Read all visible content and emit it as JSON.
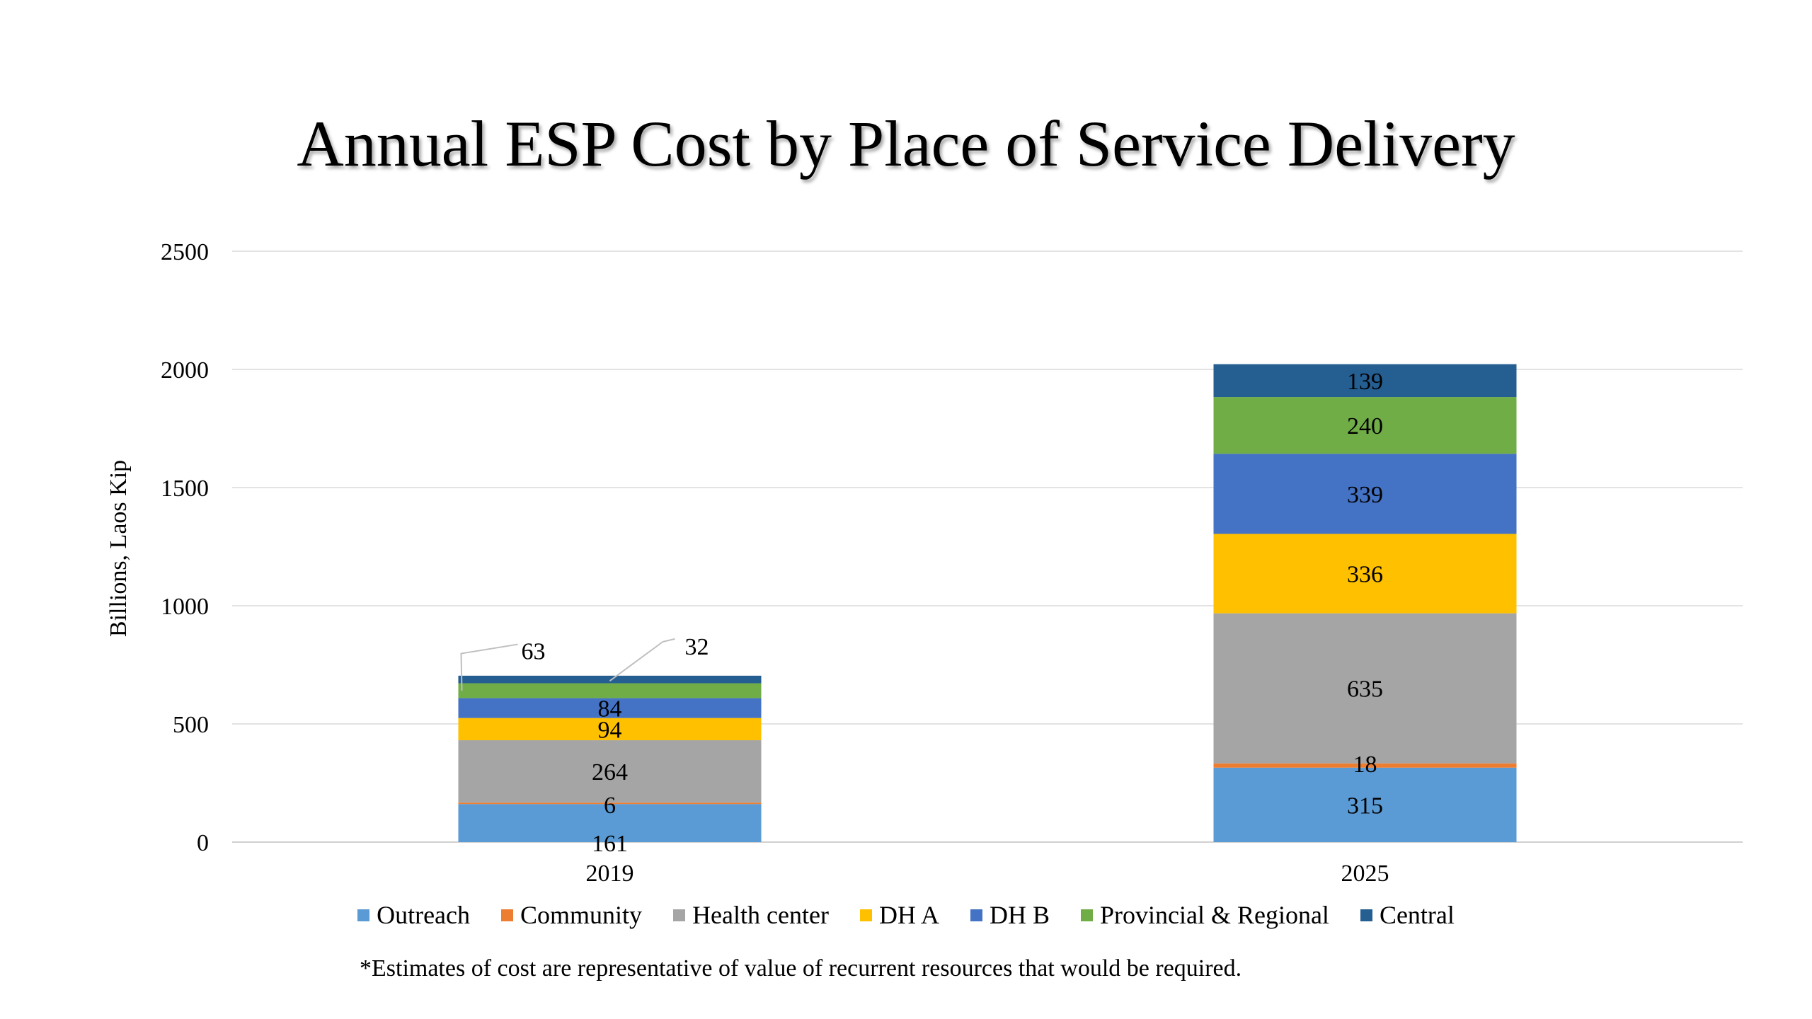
{
  "chart_data": {
    "type": "bar",
    "stacked": true,
    "title": "Annual ESP Cost by Place of Service Delivery",
    "xlabel": "",
    "ylabel": "Billions, Laos Kip",
    "ylim": [
      0,
      2500
    ],
    "yticks": [
      0,
      500,
      1000,
      1500,
      2000,
      2500
    ],
    "categories": [
      "2019",
      "2025"
    ],
    "grid": true,
    "legend_position": "bottom",
    "series": [
      {
        "name": "Outreach",
        "color": "#5b9bd5",
        "values": [
          161,
          315
        ]
      },
      {
        "name": "Community",
        "color": "#ed7d31",
        "values": [
          6,
          18
        ]
      },
      {
        "name": "Health center",
        "color": "#a5a5a5",
        "values": [
          264,
          635
        ]
      },
      {
        "name": "DH A",
        "color": "#ffc000",
        "values": [
          94,
          336
        ]
      },
      {
        "name": "DH B",
        "color": "#4472c4",
        "values": [
          84,
          339
        ]
      },
      {
        "name": "Provincial & Regional",
        "color": "#70ad47",
        "values": [
          63,
          240
        ]
      },
      {
        "name": "Central",
        "color": "#255e91",
        "values": [
          32,
          139
        ]
      }
    ],
    "footnote": "*Estimates of cost are representative of value of recurrent resources that would be required."
  }
}
